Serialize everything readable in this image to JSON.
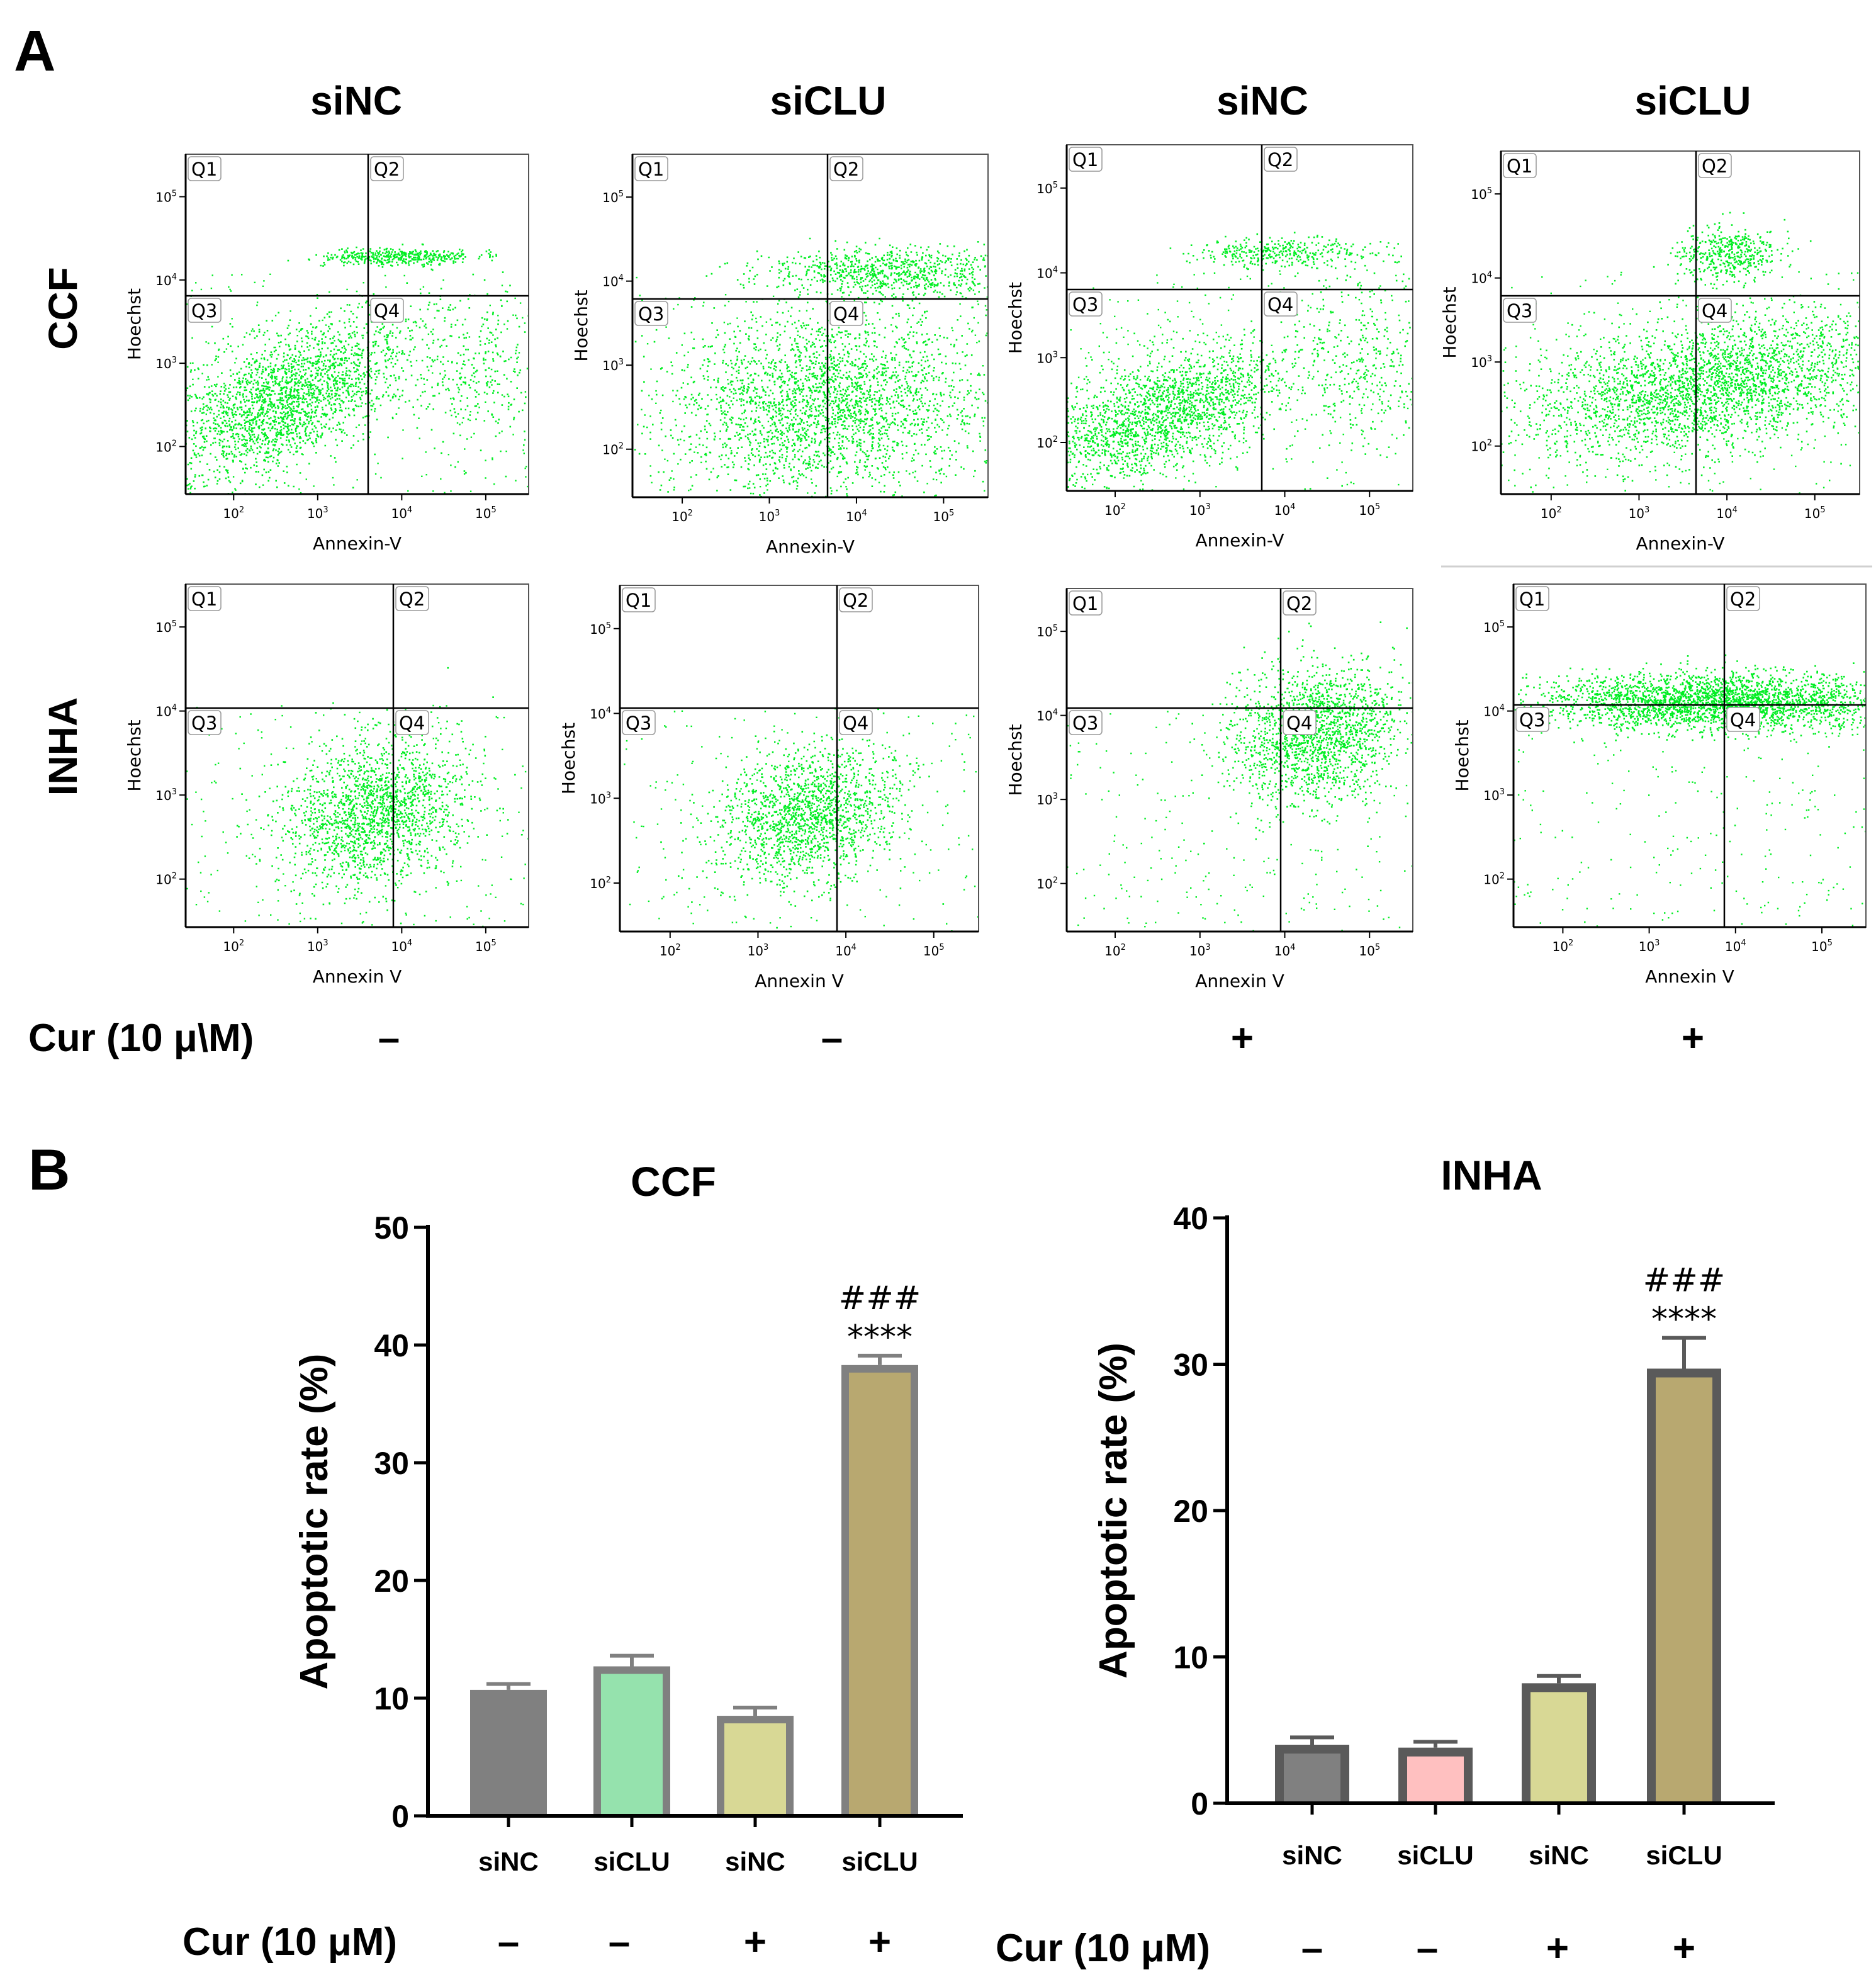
{
  "panel_a": {
    "letter": "A",
    "column_titles": [
      "siNC",
      "siCLU",
      "siNC",
      "siCLU"
    ],
    "row_titles": [
      "CCF",
      "INHA"
    ],
    "quadrant_labels": [
      "Q1",
      "Q2",
      "Q3",
      "Q4"
    ],
    "y_axis_label": "Hoechst",
    "x_axis_label_ccf": "Annexin-V",
    "x_axis_label_inha": "Annexin V",
    "tick_base": "10",
    "x_tick_exponents": [
      "2",
      "3",
      "4",
      "5"
    ],
    "y_tick_exponents": [
      "2",
      "3",
      "4",
      "5"
    ],
    "treatment_label": "Cur (10 μ\\M)",
    "treatment_signs": [
      "–",
      "–",
      "+",
      "+"
    ],
    "dot_color": "#00ee22"
  },
  "panel_b": {
    "letter": "B",
    "treatment_label": "Cur (10 μM)"
  },
  "chart_data": [
    {
      "type": "bar",
      "title": "CCF",
      "ylabel": "Apoptotic rate (%)",
      "xlabel": "",
      "categories": [
        "siNC",
        "siCLU",
        "siNC",
        "siCLU"
      ],
      "values": [
        10.7,
        12.7,
        8.5,
        38.3
      ],
      "errors": [
        0.5,
        0.9,
        0.7,
        0.8
      ],
      "ylim": [
        0,
        50
      ],
      "yticks": [
        0,
        10,
        20,
        30,
        40,
        50
      ],
      "treatment_signs": [
        "–",
        "–",
        "+",
        "+"
      ],
      "annotations": [
        {
          "index": 3,
          "lines": [
            "###",
            "****"
          ]
        }
      ],
      "fill_colors": [
        "#808080",
        "#95e2ad",
        "#d8d895",
        "#b8a870"
      ],
      "edge_colors": [
        "#808080",
        "#808080",
        "#808080",
        "#808080"
      ]
    },
    {
      "type": "bar",
      "title": "INHA",
      "ylabel": "Apoptotic rate (%)",
      "xlabel": "",
      "categories": [
        "siNC",
        "siCLU",
        "siNC",
        "siCLU"
      ],
      "values": [
        4.0,
        3.8,
        8.2,
        29.7
      ],
      "errors": [
        0.5,
        0.4,
        0.5,
        2.1
      ],
      "ylim": [
        0,
        40
      ],
      "yticks": [
        0,
        10,
        20,
        30,
        40
      ],
      "treatment_signs": [
        "–",
        "–",
        "+",
        "+"
      ],
      "annotations": [
        {
          "index": 3,
          "lines": [
            "###",
            "****"
          ]
        }
      ],
      "fill_colors": [
        "#808080",
        "#ffc0c0",
        "#d8d895",
        "#b8a870"
      ],
      "edge_colors": [
        "#5a5a5a",
        "#5a5a5a",
        "#5a5a5a",
        "#5a5a5a"
      ]
    }
  ]
}
